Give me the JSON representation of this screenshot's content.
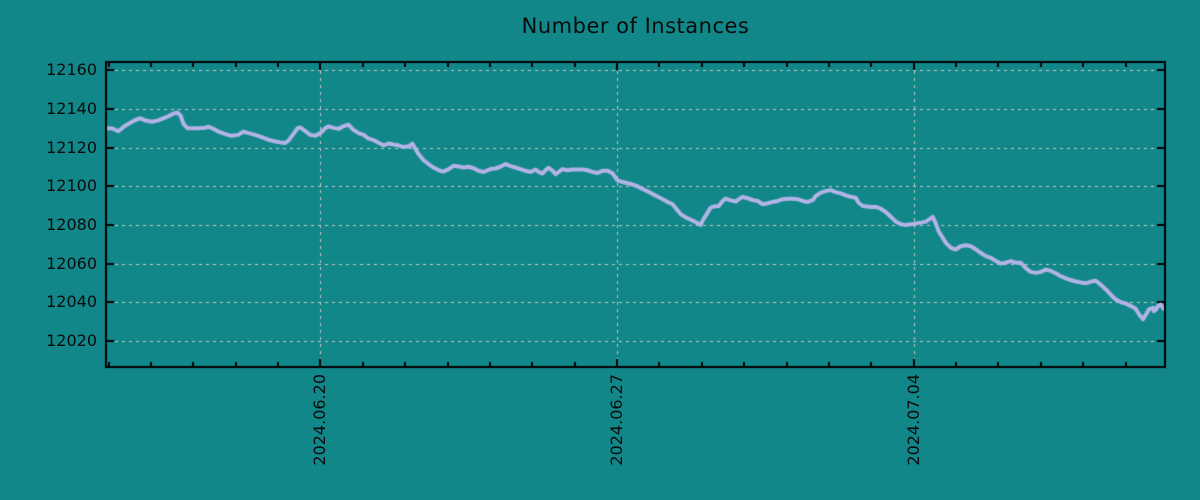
{
  "chart_data": {
    "type": "line",
    "title": "Number of Instances",
    "legend": "none",
    "grid": true,
    "x_tick_labels": [
      "2024.06.20",
      "2024.06.27",
      "2024.07.04"
    ],
    "x_tick_days": [
      0,
      7,
      14
    ],
    "x_minor_tick_step_days": 1,
    "x_range_days": [
      -5.06,
      19.93
    ],
    "y_ticks": [
      12020,
      12040,
      12060,
      12080,
      12100,
      12120,
      12140,
      12160
    ],
    "y_range": [
      12006.5,
      12164.3
    ],
    "colors": {
      "background": "#118789",
      "line": "#b3b3e6",
      "grid": "#c6c6c6",
      "axis": "#000000",
      "text": "#0b0b0b"
    },
    "series": [
      {
        "name": "instances",
        "points": [
          [
            -5.05,
            12130.0
          ],
          [
            -4.91,
            12129.9
          ],
          [
            -4.77,
            12128.5
          ],
          [
            -4.6,
            12131.5
          ],
          [
            -4.37,
            12134.3
          ],
          [
            -4.25,
            12135.2
          ],
          [
            -4.13,
            12134.0
          ],
          [
            -3.97,
            12133.4
          ],
          [
            -3.83,
            12134.1
          ],
          [
            -3.61,
            12136.0
          ],
          [
            -3.47,
            12137.6
          ],
          [
            -3.38,
            12138.2
          ],
          [
            -3.3,
            12136.6
          ],
          [
            -3.23,
            12132.3
          ],
          [
            -3.14,
            12130.0
          ],
          [
            -2.88,
            12130.0
          ],
          [
            -2.72,
            12130.3
          ],
          [
            -2.64,
            12130.8
          ],
          [
            -2.55,
            12130.0
          ],
          [
            -2.41,
            12128.3
          ],
          [
            -2.24,
            12127.0
          ],
          [
            -2.1,
            12126.1
          ],
          [
            -1.94,
            12126.6
          ],
          [
            -1.82,
            12128.3
          ],
          [
            -1.7,
            12127.5
          ],
          [
            -1.54,
            12126.6
          ],
          [
            -1.37,
            12125.3
          ],
          [
            -1.23,
            12124.1
          ],
          [
            -1.06,
            12123.2
          ],
          [
            -0.94,
            12122.7
          ],
          [
            -0.83,
            12122.4
          ],
          [
            -0.76,
            12123.5
          ],
          [
            -0.64,
            12127.0
          ],
          [
            -0.54,
            12130.0
          ],
          [
            -0.47,
            12130.4
          ],
          [
            -0.35,
            12128.4
          ],
          [
            -0.24,
            12126.6
          ],
          [
            -0.12,
            12126.1
          ],
          [
            0.0,
            12127.5
          ],
          [
            0.12,
            12130.2
          ],
          [
            0.19,
            12131.0
          ],
          [
            0.31,
            12130.2
          ],
          [
            0.43,
            12129.7
          ],
          [
            0.54,
            12131.0
          ],
          [
            0.66,
            12131.9
          ],
          [
            0.78,
            12129.2
          ],
          [
            0.9,
            12127.5
          ],
          [
            1.02,
            12126.6
          ],
          [
            1.13,
            12124.8
          ],
          [
            1.25,
            12123.9
          ],
          [
            1.37,
            12122.5
          ],
          [
            1.49,
            12121.2
          ],
          [
            1.61,
            12122.1
          ],
          [
            1.72,
            12121.6
          ],
          [
            1.84,
            12121.2
          ],
          [
            1.96,
            12120.3
          ],
          [
            2.08,
            12120.7
          ],
          [
            2.17,
            12122.1
          ],
          [
            2.24,
            12119.4
          ],
          [
            2.31,
            12116.8
          ],
          [
            2.43,
            12113.6
          ],
          [
            2.55,
            12111.5
          ],
          [
            2.67,
            12109.7
          ],
          [
            2.79,
            12108.3
          ],
          [
            2.9,
            12107.6
          ],
          [
            3.02,
            12108.8
          ],
          [
            3.14,
            12110.6
          ],
          [
            3.26,
            12110.2
          ],
          [
            3.38,
            12109.7
          ],
          [
            3.49,
            12110.1
          ],
          [
            3.61,
            12109.4
          ],
          [
            3.73,
            12108.0
          ],
          [
            3.85,
            12107.4
          ],
          [
            4.01,
            12108.9
          ],
          [
            4.13,
            12109.2
          ],
          [
            4.25,
            12110.1
          ],
          [
            4.37,
            12111.5
          ],
          [
            4.49,
            12110.4
          ],
          [
            4.6,
            12109.7
          ],
          [
            4.72,
            12108.9
          ],
          [
            4.84,
            12108.0
          ],
          [
            4.96,
            12107.4
          ],
          [
            5.08,
            12108.7
          ],
          [
            5.15,
            12107.4
          ],
          [
            5.24,
            12106.6
          ],
          [
            5.31,
            12108.3
          ],
          [
            5.38,
            12109.6
          ],
          [
            5.48,
            12108.0
          ],
          [
            5.55,
            12106.2
          ],
          [
            5.62,
            12107.4
          ],
          [
            5.71,
            12108.9
          ],
          [
            5.83,
            12108.3
          ],
          [
            5.95,
            12108.7
          ],
          [
            6.07,
            12108.7
          ],
          [
            6.19,
            12108.7
          ],
          [
            6.3,
            12108.3
          ],
          [
            6.42,
            12107.4
          ],
          [
            6.54,
            12106.9
          ],
          [
            6.66,
            12108.0
          ],
          [
            6.78,
            12108.0
          ],
          [
            6.9,
            12106.6
          ],
          [
            7.01,
            12103.1
          ],
          [
            7.13,
            12102.2
          ],
          [
            7.25,
            12101.6
          ],
          [
            7.37,
            12100.9
          ],
          [
            7.49,
            12099.9
          ],
          [
            7.6,
            12098.6
          ],
          [
            7.72,
            12097.4
          ],
          [
            7.84,
            12096.0
          ],
          [
            7.96,
            12094.6
          ],
          [
            8.08,
            12093.3
          ],
          [
            8.19,
            12091.9
          ],
          [
            8.31,
            12090.7
          ],
          [
            8.43,
            12087.5
          ],
          [
            8.5,
            12085.6
          ],
          [
            8.62,
            12083.9
          ],
          [
            8.74,
            12082.7
          ],
          [
            8.86,
            12081.4
          ],
          [
            8.97,
            12080.0
          ],
          [
            9.04,
            12083.0
          ],
          [
            9.14,
            12086.5
          ],
          [
            9.21,
            12089.0
          ],
          [
            9.28,
            12089.5
          ],
          [
            9.4,
            12089.8
          ],
          [
            9.49,
            12092.4
          ],
          [
            9.56,
            12093.6
          ],
          [
            9.68,
            12092.7
          ],
          [
            9.8,
            12092.1
          ],
          [
            9.87,
            12093.3
          ],
          [
            9.96,
            12094.5
          ],
          [
            10.08,
            12093.8
          ],
          [
            10.2,
            12092.9
          ],
          [
            10.32,
            12092.4
          ],
          [
            10.44,
            12090.7
          ],
          [
            10.56,
            12091.2
          ],
          [
            10.67,
            12091.9
          ],
          [
            10.79,
            12092.4
          ],
          [
            10.91,
            12093.3
          ],
          [
            11.03,
            12093.6
          ],
          [
            11.15,
            12093.6
          ],
          [
            11.26,
            12093.3
          ],
          [
            11.38,
            12092.4
          ],
          [
            11.5,
            12091.9
          ],
          [
            11.62,
            12092.9
          ],
          [
            11.69,
            12095.0
          ],
          [
            11.81,
            12096.7
          ],
          [
            11.92,
            12097.5
          ],
          [
            12.04,
            12098.0
          ],
          [
            12.16,
            12097.0
          ],
          [
            12.28,
            12096.3
          ],
          [
            12.4,
            12095.3
          ],
          [
            12.51,
            12094.6
          ],
          [
            12.63,
            12094.1
          ],
          [
            12.7,
            12091.5
          ],
          [
            12.8,
            12089.8
          ],
          [
            12.99,
            12089.3
          ],
          [
            13.11,
            12089.3
          ],
          [
            13.22,
            12088.4
          ],
          [
            13.34,
            12086.7
          ],
          [
            13.46,
            12084.2
          ],
          [
            13.58,
            12081.7
          ],
          [
            13.7,
            12080.3
          ],
          [
            13.81,
            12080.0
          ],
          [
            13.93,
            12080.3
          ],
          [
            14.05,
            12080.8
          ],
          [
            14.17,
            12081.2
          ],
          [
            14.29,
            12081.7
          ],
          [
            14.4,
            12083.4
          ],
          [
            14.45,
            12084.2
          ],
          [
            14.52,
            12080.8
          ],
          [
            14.59,
            12076.6
          ],
          [
            14.69,
            12073.2
          ],
          [
            14.76,
            12070.7
          ],
          [
            14.88,
            12068.1
          ],
          [
            14.99,
            12067.3
          ],
          [
            15.11,
            12069.0
          ],
          [
            15.23,
            12069.5
          ],
          [
            15.35,
            12069.0
          ],
          [
            15.47,
            12067.3
          ],
          [
            15.58,
            12065.6
          ],
          [
            15.7,
            12063.9
          ],
          [
            15.82,
            12063.0
          ],
          [
            15.94,
            12061.3
          ],
          [
            16.06,
            12060.0
          ],
          [
            16.17,
            12060.5
          ],
          [
            16.29,
            12061.3
          ],
          [
            16.41,
            12060.5
          ],
          [
            16.53,
            12060.4
          ],
          [
            16.65,
            12057.5
          ],
          [
            16.76,
            12055.7
          ],
          [
            16.88,
            12055.2
          ],
          [
            17.0,
            12055.7
          ],
          [
            17.12,
            12056.9
          ],
          [
            17.24,
            12056.2
          ],
          [
            17.36,
            12054.9
          ],
          [
            17.47,
            12053.5
          ],
          [
            17.59,
            12052.4
          ],
          [
            17.71,
            12051.5
          ],
          [
            17.83,
            12050.7
          ],
          [
            17.95,
            12050.2
          ],
          [
            18.06,
            12049.8
          ],
          [
            18.18,
            12050.7
          ],
          [
            18.3,
            12051.1
          ],
          [
            18.42,
            12049.0
          ],
          [
            18.54,
            12046.5
          ],
          [
            18.65,
            12043.9
          ],
          [
            18.77,
            12041.4
          ],
          [
            18.89,
            12040.0
          ],
          [
            19.01,
            12039.3
          ],
          [
            19.13,
            12038.0
          ],
          [
            19.24,
            12036.6
          ],
          [
            19.32,
            12033.7
          ],
          [
            19.41,
            12031.2
          ],
          [
            19.48,
            12033.7
          ],
          [
            19.55,
            12036.3
          ],
          [
            19.65,
            12037.1
          ],
          [
            19.67,
            12035.4
          ],
          [
            19.72,
            12036.3
          ],
          [
            19.76,
            12038.0
          ],
          [
            19.83,
            12038.8
          ],
          [
            19.9,
            12036.6
          ]
        ]
      }
    ]
  }
}
